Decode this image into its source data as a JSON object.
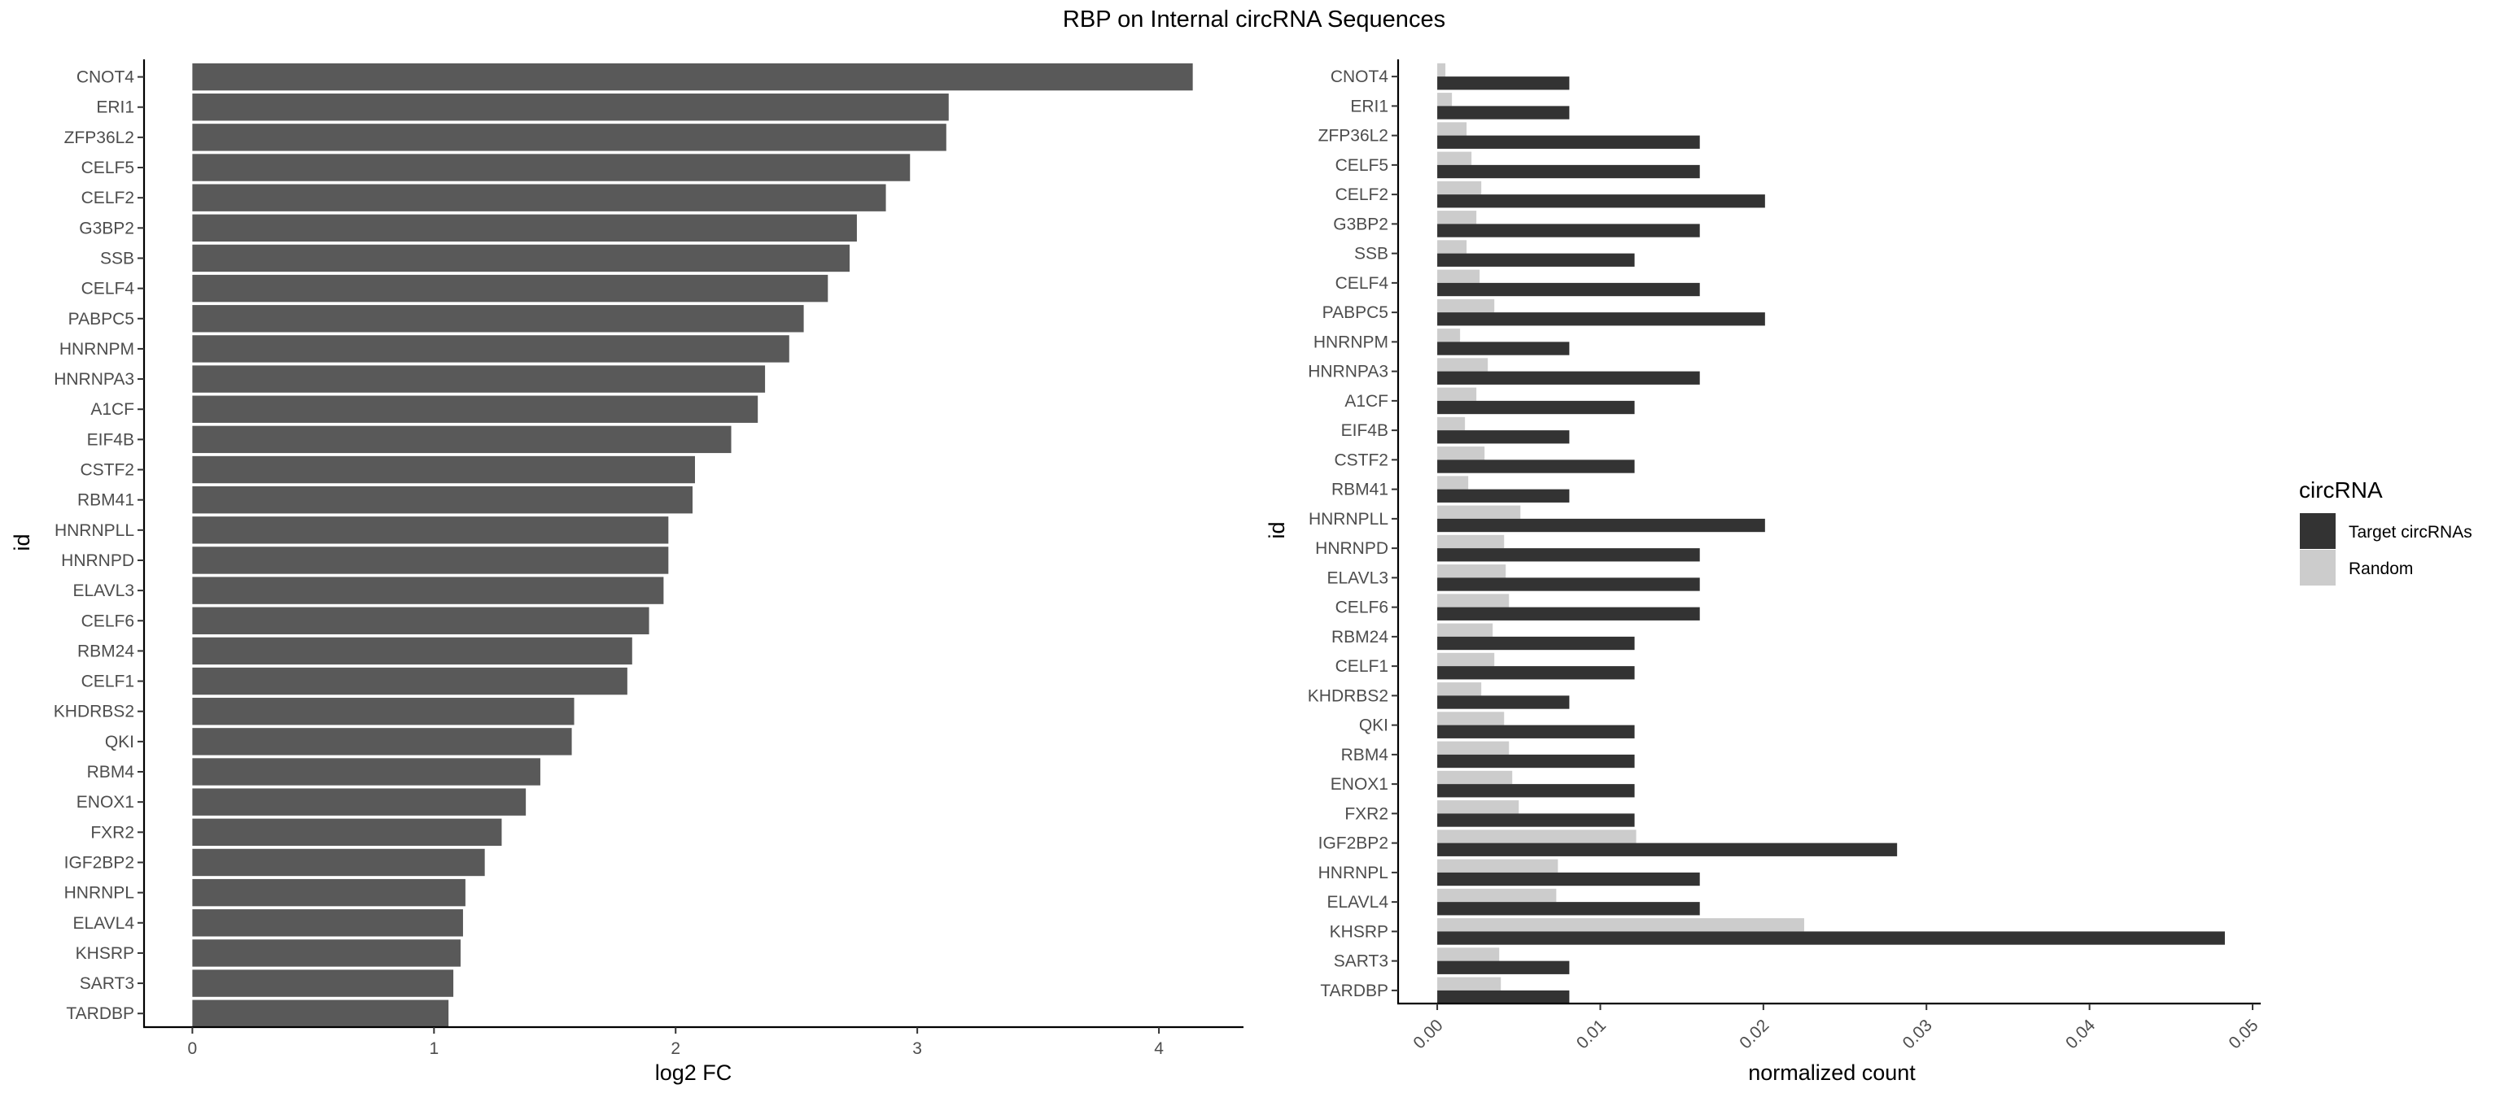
{
  "figure": {
    "title": "RBP on Internal circRNA Sequences"
  },
  "colors": {
    "log2fc_bar": "#595959",
    "target": "#333333",
    "random": "#cccccc"
  },
  "chart_data": [
    {
      "type": "bar",
      "orientation": "horizontal",
      "xlabel": "log2 FC",
      "ylabel": "id",
      "xlim": [
        -0.2,
        4.35
      ],
      "xticks": [
        "0",
        "1",
        "2",
        "3",
        "4"
      ],
      "grid": false,
      "categories": [
        "CNOT4",
        "ERI1",
        "ZFP36L2",
        "CELF5",
        "CELF2",
        "G3BP2",
        "SSB",
        "CELF4",
        "PABPC5",
        "HNRNPM",
        "HNRNPA3",
        "A1CF",
        "EIF4B",
        "CSTF2",
        "RBM41",
        "HNRNPLL",
        "HNRNPD",
        "ELAVL3",
        "CELF6",
        "RBM24",
        "CELF1",
        "KHDRBS2",
        "QKI",
        "RBM4",
        "ENOX1",
        "FXR2",
        "IGF2BP2",
        "HNRNPL",
        "ELAVL4",
        "KHSRP",
        "SART3",
        "TARDBP"
      ],
      "values": [
        4.14,
        3.13,
        3.12,
        2.97,
        2.87,
        2.75,
        2.72,
        2.63,
        2.53,
        2.47,
        2.37,
        2.34,
        2.23,
        2.08,
        2.07,
        1.97,
        1.97,
        1.95,
        1.89,
        1.82,
        1.8,
        1.58,
        1.57,
        1.44,
        1.38,
        1.28,
        1.21,
        1.13,
        1.12,
        1.11,
        1.08,
        1.06
      ]
    },
    {
      "type": "bar",
      "orientation": "horizontal",
      "xlabel": "normalized count",
      "ylabel": "id",
      "xlim": [
        -0.0024,
        0.0505
      ],
      "xticks": [
        "0.00",
        "0.01",
        "0.02",
        "0.03",
        "0.04",
        "0.05"
      ],
      "grid": false,
      "legend": {
        "title": "circRNA",
        "position": "right"
      },
      "categories": [
        "CNOT4",
        "ERI1",
        "ZFP36L2",
        "CELF5",
        "CELF2",
        "G3BP2",
        "SSB",
        "CELF4",
        "PABPC5",
        "HNRNPM",
        "HNRNPA3",
        "A1CF",
        "EIF4B",
        "CSTF2",
        "RBM41",
        "HNRNPLL",
        "HNRNPD",
        "ELAVL3",
        "CELF6",
        "RBM24",
        "CELF1",
        "KHDRBS2",
        "QKI",
        "RBM4",
        "ENOX1",
        "FXR2",
        "IGF2BP2",
        "HNRNPL",
        "ELAVL4",
        "KHSRP",
        "SART3",
        "TARDBP"
      ],
      "series": [
        {
          "name": "Target circRNAs",
          "values": [
            0.0081,
            0.0081,
            0.0161,
            0.0161,
            0.0201,
            0.0161,
            0.0121,
            0.0161,
            0.0201,
            0.0081,
            0.0161,
            0.0121,
            0.0081,
            0.0121,
            0.0081,
            0.0201,
            0.0161,
            0.0161,
            0.0161,
            0.0121,
            0.0121,
            0.0081,
            0.0121,
            0.0121,
            0.0121,
            0.0121,
            0.0282,
            0.0161,
            0.0161,
            0.0483,
            0.0081,
            0.0081
          ]
        },
        {
          "name": "Random",
          "values": [
            0.0005,
            0.0009,
            0.0018,
            0.0021,
            0.0027,
            0.0024,
            0.0018,
            0.0026,
            0.0035,
            0.0014,
            0.0031,
            0.0024,
            0.0017,
            0.0029,
            0.0019,
            0.0051,
            0.0041,
            0.0042,
            0.0044,
            0.0034,
            0.0035,
            0.0027,
            0.0041,
            0.0044,
            0.0046,
            0.005,
            0.0122,
            0.0074,
            0.0073,
            0.0225,
            0.0038,
            0.0039
          ]
        }
      ]
    }
  ]
}
